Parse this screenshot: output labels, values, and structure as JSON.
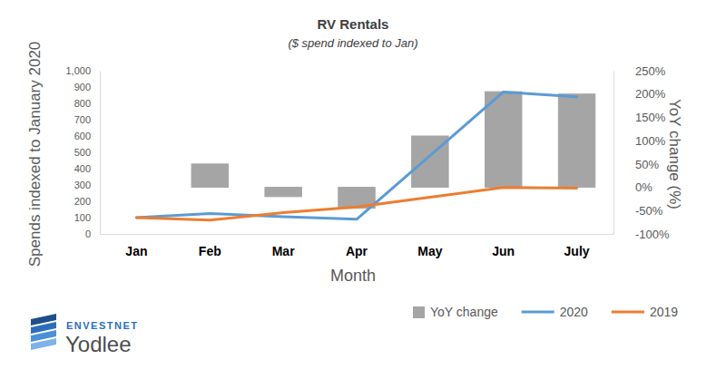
{
  "chart_data": {
    "type": "bar",
    "title": "RV Rentals",
    "subtitle": "($ spend indexed to Jan)",
    "x_label": "Month",
    "y_label": "Spends indexed to January 2020",
    "y2_label": "YoY change (%)",
    "categories": [
      "Jan",
      "Feb",
      "Mar",
      "Apr",
      "May",
      "Jun",
      "July"
    ],
    "series": [
      {
        "name": "YoY change",
        "type": "bar",
        "axis": "y2",
        "color": "#a5a5a5",
        "values": [
          0,
          50,
          -20,
          -45,
          110,
          205,
          200
        ]
      },
      {
        "name": "2020",
        "type": "line",
        "color": "#5b9bd5",
        "values": [
          100,
          125,
          105,
          90,
          480,
          870,
          840
        ]
      },
      {
        "name": "2019",
        "type": "line",
        "color": "#ed7d31",
        "values": [
          100,
          85,
          130,
          165,
          225,
          285,
          280
        ]
      }
    ],
    "ylim": [
      0,
      1000
    ],
    "yticks": [
      0,
      100,
      200,
      300,
      400,
      500,
      600,
      700,
      800,
      900,
      {
        "value": 1000,
        "label": "1,000"
      }
    ],
    "y2lim": [
      -100,
      250
    ],
    "y2ticks": [
      {
        "value": -100,
        "label": "-100%"
      },
      {
        "value": -50,
        "label": "-50%"
      },
      {
        "value": 0,
        "label": "0%"
      },
      {
        "value": 50,
        "label": "50%"
      },
      {
        "value": 100,
        "label": "100%"
      },
      {
        "value": 150,
        "label": "150%"
      },
      {
        "value": 200,
        "label": "200%"
      },
      {
        "value": 250,
        "label": "250%"
      }
    ],
    "grid": false,
    "legend": "bottom",
    "annotations": [
      "ENVESTNET",
      "Yodlee"
    ]
  }
}
